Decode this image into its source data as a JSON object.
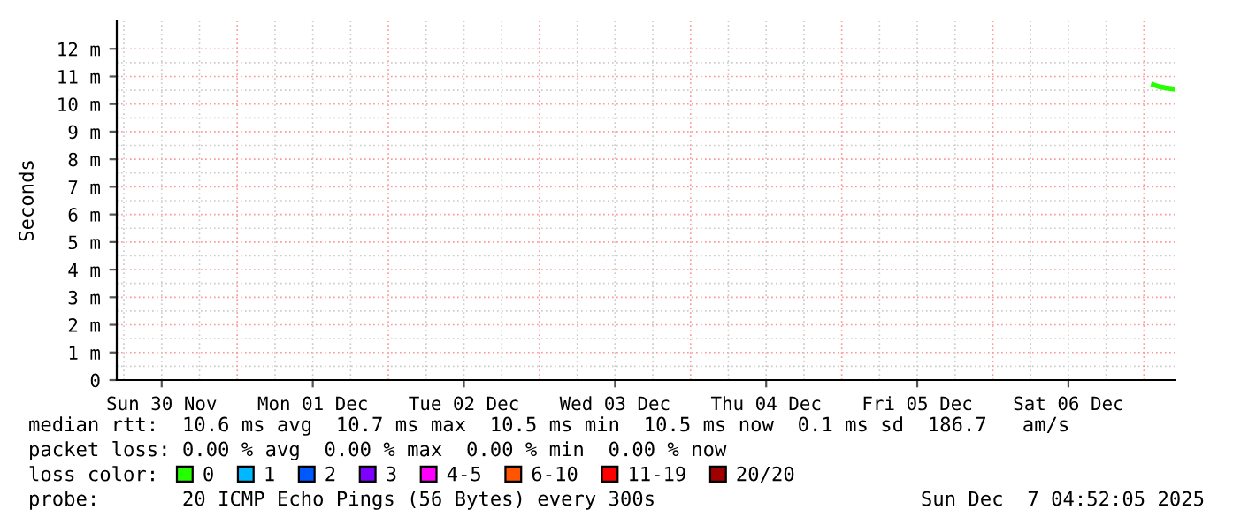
{
  "chart_data": {
    "type": "line",
    "ylabel": "Seconds",
    "x": [
      "2025-12-07T01:30",
      "2025-12-07T02:30",
      "2025-12-07T03:30",
      "2025-12-07T04:30"
    ],
    "series": [
      {
        "name": "0",
        "color": "#26ff00",
        "values": [
          10.7,
          10.62,
          10.58,
          10.55
        ]
      },
      {
        "name": "1",
        "color": "#00b8ff",
        "values": [
          null,
          null,
          null,
          null
        ]
      },
      {
        "name": "2",
        "color": "#0059ff",
        "values": [
          null,
          null,
          null,
          null
        ]
      },
      {
        "name": "3",
        "color": "#7e00ff",
        "values": [
          null,
          null,
          null,
          null
        ]
      },
      {
        "name": "4-5",
        "color": "#ff00ff",
        "values": [
          null,
          null,
          null,
          null
        ]
      },
      {
        "name": "6-10",
        "color": "#ff5500",
        "values": [
          null,
          null,
          null,
          null
        ]
      },
      {
        "name": "11-19",
        "color": "#ff0000",
        "values": [
          null,
          null,
          null,
          null
        ]
      },
      {
        "name": "20/20",
        "color": "#a10000",
        "values": [
          null,
          null,
          null,
          null
        ]
      }
    ],
    "legend_title": "loss color:",
    "legend": "bottom",
    "grid": true,
    "marker": "none",
    "line_style": "solid",
    "xlim": [
      "2025-11-30T04:52",
      "2025-12-07T04:52"
    ],
    "xticks": [
      {
        "value": "2025-11-30T12:00",
        "label": "Sun 30 Nov"
      },
      {
        "value": "2025-12-01T12:00",
        "label": "Mon 01 Dec"
      },
      {
        "value": "2025-12-02T12:00",
        "label": "Tue 02 Dec"
      },
      {
        "value": "2025-12-03T12:00",
        "label": "Wed 03 Dec"
      },
      {
        "value": "2025-12-04T12:00",
        "label": "Thu 04 Dec"
      },
      {
        "value": "2025-12-05T12:00",
        "label": "Fri 05 Dec"
      },
      {
        "value": "2025-12-06T12:00",
        "label": "Sat 06 Dec"
      }
    ],
    "ylim": [
      0,
      13
    ],
    "yticks": [
      0,
      {
        "value": 1,
        "label": "1 m"
      },
      {
        "value": 2,
        "label": "2 m"
      },
      {
        "value": 3,
        "label": "3 m"
      },
      {
        "value": 4,
        "label": "4 m"
      },
      {
        "value": 5,
        "label": "5 m"
      },
      {
        "value": 6,
        "label": "6 m"
      },
      {
        "value": 7,
        "label": "7 m"
      },
      {
        "value": 8,
        "label": "8 m"
      },
      {
        "value": 9,
        "label": "9 m"
      },
      {
        "value": 10,
        "label": "10 m"
      },
      {
        "value": 11,
        "label": "11 m"
      },
      {
        "value": 12,
        "label": "12 m"
      }
    ],
    "annotations": [
      "median rtt:  10.6 ms avg  10.7 ms max  10.5 ms min  10.5 ms now  0.1 ms sd  186.7   am/s",
      "packet loss: 0.00 % avg  0.00 % max  0.00 % min  0.00 % now",
      "probe:       20 ICMP Echo Pings (56 Bytes) every 300s",
      "Sun Dec  7 04:52:05 2025"
    ]
  }
}
